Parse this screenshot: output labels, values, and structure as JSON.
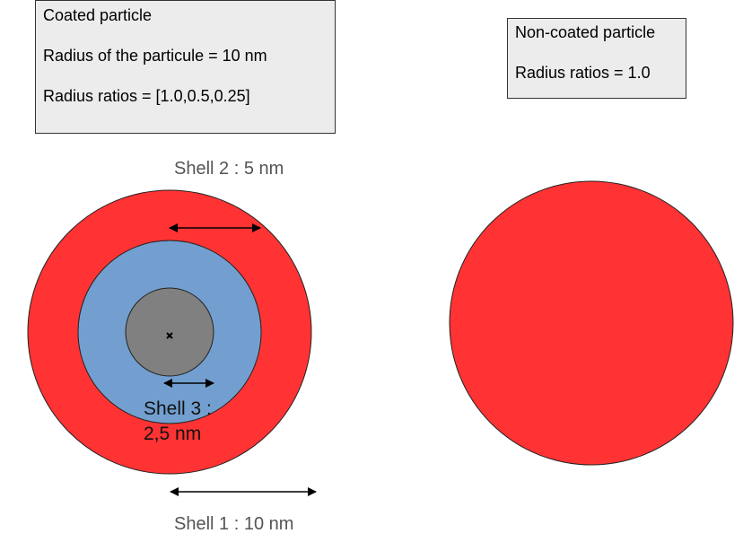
{
  "coated_box": {
    "title": "Coated particle",
    "radius_text": "Radius of the particule = 10 nm",
    "ratios_text": "Radius ratios = [1.0,0.5,0.25]"
  },
  "noncoated_box": {
    "title": "Non-coated particle",
    "ratios_text": "Radius ratios = 1.0"
  },
  "labels": {
    "shell1": "Shell 1 : 10 nm",
    "shell2": "Shell 2 : 5 nm",
    "shell3_line1": "Shell 3 :",
    "shell3_line2": "2,5 nm"
  },
  "colors": {
    "shell1": "#ff3333",
    "shell2": "#729fcf",
    "shell3": "#808080",
    "box_background": "#ececec"
  }
}
